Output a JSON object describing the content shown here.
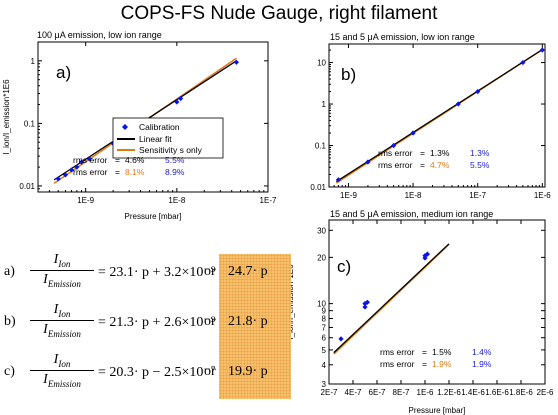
{
  "page": {
    "title": "COPS-FS Nude Gauge, right filament"
  },
  "colors": {
    "calibration": "#0a14e6",
    "linear_fit": "#000000",
    "sensitivity": "#e07a14",
    "rms_linear": "#000000",
    "rms_sens_orange": "#e07a14",
    "rms_blue": "#1a1ad0",
    "alt_box": "#f7c06a"
  },
  "chart_data": [
    {
      "id": "top-left",
      "type": "scatter",
      "title": "100 μA emission, low ion range",
      "panel_label": "a)",
      "xlabel": "Pressure [mbar]",
      "ylabel": "I_ion/I_emission*1E6",
      "xscale": "log",
      "yscale": "log",
      "xlim": [
        3e-10,
        1e-07
      ],
      "ylim": [
        0.008,
        2
      ],
      "xticks": [
        {
          "v": 1e-09,
          "label": "1E-9"
        },
        {
          "v": 1e-08,
          "label": "1E-8"
        },
        {
          "v": 1e-07,
          "label": "1E-7"
        }
      ],
      "yticks": [
        {
          "v": 0.01,
          "label": "0.01"
        },
        {
          "v": 0.1,
          "label": "0.1"
        },
        {
          "v": 1,
          "label": "1"
        }
      ],
      "legend": [
        "Calibration",
        "Linear fit",
        "Sensitivity s only"
      ],
      "rms_rows": [
        {
          "label": "rms error",
          "eq": "=",
          "v1": "4.6%",
          "v2": "5.5%",
          "c1": "#000000"
        },
        {
          "label": "rms error",
          "eq": "=",
          "v1": "8.1%",
          "v2": "8.9%",
          "c1": "#e07a14"
        }
      ],
      "points": [
        [
          5e-10,
          0.013
        ],
        [
          6e-10,
          0.015
        ],
        [
          7e-10,
          0.018
        ],
        [
          8e-10,
          0.02
        ],
        [
          9e-10,
          0.024
        ],
        [
          1.1e-09,
          0.027
        ],
        [
          2e-09,
          0.048
        ],
        [
          2.3e-09,
          0.052
        ],
        [
          5e-09,
          0.11
        ],
        [
          1e-08,
          0.22
        ],
        [
          1.1e-08,
          0.25
        ],
        [
          4.5e-08,
          0.95
        ]
      ],
      "linear_fit": [
        [
          4.5e-10,
          0.0125
        ],
        [
          4.5e-08,
          1.0
        ]
      ],
      "sensitivity_fit": [
        [
          4.5e-10,
          0.011
        ],
        [
          4.5e-08,
          1.1
        ]
      ]
    },
    {
      "id": "top-right",
      "type": "scatter",
      "title": "15 and 5 μA emission, low ion range",
      "panel_label": "b)",
      "xlabel": "",
      "ylabel": "",
      "xscale": "log",
      "yscale": "log",
      "xlim": [
        5e-10,
        1.1e-06
      ],
      "ylim": [
        0.01,
        28
      ],
      "xticks": [
        {
          "v": 1e-09,
          "label": "1E-9"
        },
        {
          "v": 1e-08,
          "label": "1E-8"
        },
        {
          "v": 1e-07,
          "label": "1E-7"
        },
        {
          "v": 1e-06,
          "label": "1E-6"
        }
      ],
      "yticks": [
        {
          "v": 0.01,
          "label": "0.01"
        },
        {
          "v": 0.1,
          "label": "0.1"
        },
        {
          "v": 1,
          "label": "1"
        },
        {
          "v": 10,
          "label": "10"
        }
      ],
      "rms_rows": [
        {
          "label": "rms error",
          "eq": "=",
          "v1": "1.3%",
          "v2": "1.3%",
          "c1": "#000000"
        },
        {
          "label": "rms error",
          "eq": "=",
          "v1": "4.7%",
          "v2": "5.5%",
          "c1": "#e07a14"
        }
      ],
      "points": [
        [
          7e-10,
          0.015
        ],
        [
          2e-09,
          0.04
        ],
        [
          5e-09,
          0.1
        ],
        [
          1e-08,
          0.2
        ],
        [
          5e-08,
          1.0
        ],
        [
          1e-07,
          2.0
        ],
        [
          5e-07,
          10
        ],
        [
          1e-06,
          20
        ]
      ],
      "linear_fit": [
        [
          6.5e-10,
          0.0135
        ],
        [
          1e-06,
          20.5
        ]
      ],
      "sensitivity_fit": [
        [
          6.5e-10,
          0.0125
        ],
        [
          1e-06,
          20.5
        ]
      ]
    },
    {
      "id": "bottom-right",
      "type": "scatter",
      "title": "15 and 5 μA emission, medium ion range",
      "panel_label": "c)",
      "xlabel": "Pressure [mbar]",
      "ylabel": "I_ion/I_emission*1E6",
      "xscale": "linear",
      "yscale": "log",
      "xlim": [
        2e-07,
        2e-06
      ],
      "ylim": [
        3,
        35
      ],
      "xticks": [
        {
          "v": 2e-07,
          "label": "2E-7"
        },
        {
          "v": 4e-07,
          "label": "4E-7"
        },
        {
          "v": 6e-07,
          "label": "6E-7"
        },
        {
          "v": 8e-07,
          "label": "8E-7"
        },
        {
          "v": 1e-06,
          "label": "1E-6"
        },
        {
          "v": 1.2e-06,
          "label": "1.2E-6"
        },
        {
          "v": 1.4e-06,
          "label": "1.4E-6"
        },
        {
          "v": 1.6e-06,
          "label": "1.6E-6"
        },
        {
          "v": 1.8e-06,
          "label": "1.8E-6"
        },
        {
          "v": 2e-06,
          "label": "2E-6"
        }
      ],
      "yticks": [
        {
          "v": 3,
          "label": "3"
        },
        {
          "v": 4,
          "label": "4"
        },
        {
          "v": 5,
          "label": "5"
        },
        {
          "v": 6,
          "label": "6"
        },
        {
          "v": 7,
          "label": "7"
        },
        {
          "v": 8,
          "label": "8"
        },
        {
          "v": 9,
          "label": "9"
        },
        {
          "v": 10,
          "label": "10"
        },
        {
          "v": 20,
          "label": "20"
        },
        {
          "v": 30,
          "label": "30"
        }
      ],
      "rms_rows": [
        {
          "label": "rms error",
          "eq": "=",
          "v1": "1.5%",
          "v2": "1.4%",
          "c1": "#000000"
        },
        {
          "label": "rms error",
          "eq": "=",
          "v1": "1.9%",
          "v2": "1.9%",
          "c1": "#e07a14"
        }
      ],
      "points": [
        [
          3e-07,
          5.9
        ],
        [
          5e-07,
          10
        ],
        [
          5e-07,
          9.5
        ],
        [
          5.2e-07,
          10.2
        ],
        [
          1e-06,
          20.5
        ],
        [
          1.02e-06,
          21
        ],
        [
          1e-06,
          19.8
        ]
      ],
      "linear_fit": [
        [
          2.4e-07,
          4.8
        ],
        [
          1.2e-06,
          24.5
        ]
      ],
      "sensitivity_fit": [
        [
          2.4e-07,
          4.7
        ],
        [
          1.2e-06,
          24.3
        ]
      ]
    }
  ],
  "formulas": [
    {
      "tag": "a)",
      "num_main": "I",
      "num_sub": "Ion",
      "den_main": "I",
      "den_sub": "Emission",
      "rhs": "= 23.1· p + 3.2×10⁻⁹",
      "or": "or",
      "alt": "24.7· p"
    },
    {
      "tag": "b)",
      "num_main": "I",
      "num_sub": "Ion",
      "den_main": "I",
      "den_sub": "Emission",
      "rhs": "= 21.3· p + 2.6×10⁻⁹",
      "or": "or",
      "alt": "21.8· p"
    },
    {
      "tag": "c)",
      "num_main": "I",
      "num_sub": "Ion",
      "den_main": "I",
      "den_sub": "Emission",
      "rhs": "= 20.3· p − 2.5×10⁻⁷",
      "or": "or",
      "alt": "19.9· p"
    }
  ]
}
